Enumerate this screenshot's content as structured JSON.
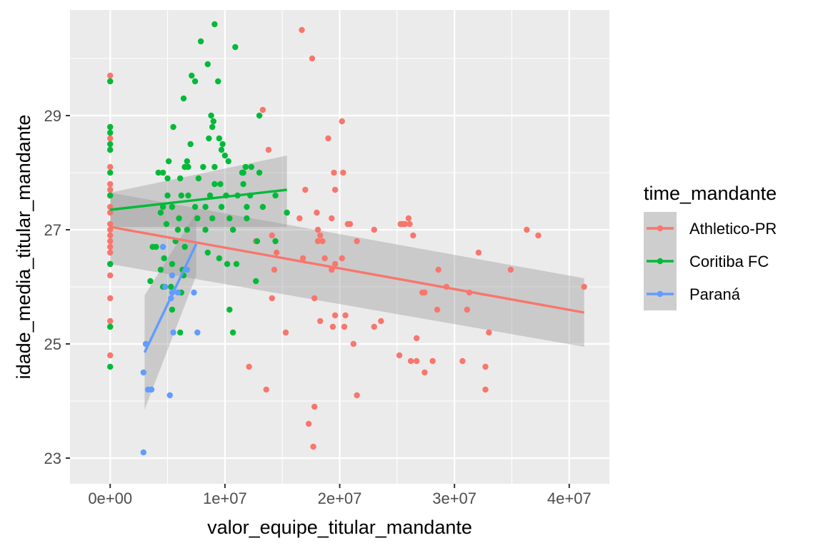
{
  "chart_data": {
    "type": "scatter",
    "title": "",
    "xlabel": "valor_equipe_titular_mandante",
    "ylabel": "idade_media_titular_mandante",
    "xlim": [
      -3500000,
      43500000
    ],
    "ylim": [
      22.55,
      30.85
    ],
    "x_ticks": [
      0,
      10000000,
      20000000,
      30000000,
      40000000
    ],
    "x_tick_labels": [
      "0e+00",
      "1e+07",
      "2e+07",
      "3e+07",
      "4e+07"
    ],
    "y_ticks": [
      23,
      25,
      27,
      29
    ],
    "y_tick_labels": [
      "23",
      "25",
      "27",
      "29"
    ],
    "grid": true,
    "legend": {
      "title": "time_mandante",
      "placement": "right"
    },
    "series": [
      {
        "name": "Athletico-PR",
        "color": "#F8766D",
        "trend": {
          "x": [
            0,
            41300000
          ],
          "y": [
            27.05,
            25.55
          ]
        },
        "band": {
          "lower": [
            26.4,
            24.95
          ],
          "upper": [
            27.65,
            26.15
          ]
        },
        "points": [
          [
            0,
            29.7
          ],
          [
            0,
            29.6
          ],
          [
            0,
            28.8
          ],
          [
            0,
            28.6
          ],
          [
            0,
            28.4
          ],
          [
            0,
            28.1
          ],
          [
            0,
            27.8
          ],
          [
            0,
            27.7
          ],
          [
            0,
            27.6
          ],
          [
            0,
            27.4
          ],
          [
            0,
            27.3
          ],
          [
            0,
            27.1
          ],
          [
            0,
            27.0
          ],
          [
            0,
            26.9
          ],
          [
            0,
            26.8
          ],
          [
            0,
            26.7
          ],
          [
            0,
            26.6
          ],
          [
            0,
            26.4
          ],
          [
            0,
            26.2
          ],
          [
            0,
            25.8
          ],
          [
            0,
            25.4
          ],
          [
            0,
            25.3
          ],
          [
            0,
            24.8
          ],
          [
            16700000,
            30.5
          ],
          [
            17600000,
            30.0
          ],
          [
            13300000,
            29.1
          ],
          [
            20200000,
            28.9
          ],
          [
            19000000,
            28.6
          ],
          [
            13800000,
            28.4
          ],
          [
            19500000,
            28.0
          ],
          [
            20300000,
            28.0
          ],
          [
            17000000,
            27.7
          ],
          [
            19600000,
            27.7
          ],
          [
            18000000,
            27.3
          ],
          [
            16500000,
            27.2
          ],
          [
            19300000,
            27.2
          ],
          [
            20700000,
            27.1
          ],
          [
            20900000,
            27.1
          ],
          [
            18100000,
            27.0
          ],
          [
            18300000,
            26.9
          ],
          [
            18100000,
            26.8
          ],
          [
            18500000,
            26.8
          ],
          [
            21500000,
            26.8
          ],
          [
            23000000,
            27.0
          ],
          [
            25300000,
            27.1
          ],
          [
            25500000,
            27.1
          ],
          [
            25700000,
            27.1
          ],
          [
            26000000,
            27.2
          ],
          [
            26100000,
            27.1
          ],
          [
            26400000,
            26.9
          ],
          [
            12700000,
            26.8
          ],
          [
            14100000,
            26.9
          ],
          [
            14500000,
            26.6
          ],
          [
            16800000,
            26.5
          ],
          [
            18700000,
            26.5
          ],
          [
            20200000,
            26.5
          ],
          [
            19600000,
            26.4
          ],
          [
            19300000,
            26.3
          ],
          [
            14300000,
            26.3
          ],
          [
            28600000,
            26.3
          ],
          [
            32100000,
            26.6
          ],
          [
            34900000,
            26.3
          ],
          [
            36300000,
            27.0
          ],
          [
            37300000,
            26.9
          ],
          [
            29300000,
            26.0
          ],
          [
            31300000,
            25.9
          ],
          [
            27400000,
            25.9
          ],
          [
            27200000,
            25.9
          ],
          [
            28500000,
            25.6
          ],
          [
            31100000,
            25.6
          ],
          [
            41300000,
            26.0
          ],
          [
            17800000,
            25.8
          ],
          [
            14100000,
            25.8
          ],
          [
            18300000,
            25.4
          ],
          [
            19600000,
            25.5
          ],
          [
            20500000,
            25.5
          ],
          [
            19400000,
            25.3
          ],
          [
            20400000,
            25.3
          ],
          [
            15300000,
            25.2
          ],
          [
            23000000,
            25.3
          ],
          [
            23600000,
            25.4
          ],
          [
            26700000,
            25.1
          ],
          [
            33000000,
            25.2
          ],
          [
            21200000,
            25.0
          ],
          [
            25200000,
            24.8
          ],
          [
            26200000,
            24.7
          ],
          [
            26700000,
            24.7
          ],
          [
            27400000,
            24.5
          ],
          [
            28100000,
            24.7
          ],
          [
            30700000,
            24.7
          ],
          [
            32700000,
            24.6
          ],
          [
            32700000,
            24.2
          ],
          [
            12100000,
            24.6
          ],
          [
            13600000,
            24.2
          ],
          [
            21500000,
            24.1
          ],
          [
            17800000,
            23.9
          ],
          [
            17300000,
            23.6
          ],
          [
            17700000,
            23.2
          ]
        ]
      },
      {
        "name": "Coritiba FC",
        "color": "#00BA38",
        "trend": {
          "x": [
            0,
            15400000
          ],
          "y": [
            27.35,
            27.7
          ]
        },
        "band": {
          "lower": [
            27.05,
            27.05
          ],
          "upper": [
            27.65,
            28.3
          ]
        },
        "points": [
          [
            0,
            29.6
          ],
          [
            0,
            28.8
          ],
          [
            0,
            28.7
          ],
          [
            0,
            28.5
          ],
          [
            0,
            28.4
          ],
          [
            0,
            28.0
          ],
          [
            0,
            27.6
          ],
          [
            0,
            26.4
          ],
          [
            0,
            25.3
          ],
          [
            0,
            24.6
          ],
          [
            6100000,
            25.2
          ],
          [
            5400000,
            25.6
          ],
          [
            9100000,
            30.6
          ],
          [
            10900000,
            30.2
          ],
          [
            7900000,
            30.3
          ],
          [
            8500000,
            29.9
          ],
          [
            7100000,
            29.7
          ],
          [
            7400000,
            29.6
          ],
          [
            9400000,
            29.6
          ],
          [
            6400000,
            29.3
          ],
          [
            8800000,
            29.0
          ],
          [
            9000000,
            28.9
          ],
          [
            8900000,
            28.8
          ],
          [
            13000000,
            29.0
          ],
          [
            5500000,
            28.8
          ],
          [
            8600000,
            28.6
          ],
          [
            9500000,
            28.6
          ],
          [
            9800000,
            28.5
          ],
          [
            7000000,
            28.5
          ],
          [
            9700000,
            28.4
          ],
          [
            10000000,
            28.3
          ],
          [
            5100000,
            28.2
          ],
          [
            6700000,
            28.2
          ],
          [
            6500000,
            28.1
          ],
          [
            6800000,
            28.1
          ],
          [
            8100000,
            28.1
          ],
          [
            9100000,
            28.1
          ],
          [
            10300000,
            28.2
          ],
          [
            11500000,
            28.0
          ],
          [
            11800000,
            28.1
          ],
          [
            12300000,
            28.1
          ],
          [
            11600000,
            28.0
          ],
          [
            13000000,
            28.0
          ],
          [
            4200000,
            28.0
          ],
          [
            4600000,
            28.0
          ],
          [
            5000000,
            27.9
          ],
          [
            6100000,
            27.9
          ],
          [
            7700000,
            27.9
          ],
          [
            9100000,
            27.8
          ],
          [
            9600000,
            27.8
          ],
          [
            11600000,
            27.8
          ],
          [
            5000000,
            27.6
          ],
          [
            6200000,
            27.6
          ],
          [
            6800000,
            27.6
          ],
          [
            8700000,
            27.6
          ],
          [
            10100000,
            27.6
          ],
          [
            11100000,
            27.6
          ],
          [
            12200000,
            27.6
          ],
          [
            14400000,
            27.6
          ],
          [
            4600000,
            27.4
          ],
          [
            5400000,
            27.4
          ],
          [
            7400000,
            27.4
          ],
          [
            8300000,
            27.4
          ],
          [
            9700000,
            27.4
          ],
          [
            11900000,
            27.4
          ],
          [
            13300000,
            27.4
          ],
          [
            15400000,
            27.3
          ],
          [
            4400000,
            27.3
          ],
          [
            6000000,
            27.2
          ],
          [
            7600000,
            27.2
          ],
          [
            8900000,
            27.2
          ],
          [
            10400000,
            27.2
          ],
          [
            11900000,
            27.2
          ],
          [
            4900000,
            27.1
          ],
          [
            5900000,
            27.0
          ],
          [
            6700000,
            27.0
          ],
          [
            8300000,
            27.0
          ],
          [
            10700000,
            27.0
          ],
          [
            12800000,
            26.8
          ],
          [
            14400000,
            26.8
          ],
          [
            5700000,
            26.8
          ],
          [
            6500000,
            26.7
          ],
          [
            8500000,
            26.6
          ],
          [
            9500000,
            26.5
          ],
          [
            10200000,
            26.4
          ],
          [
            11000000,
            26.4
          ],
          [
            4000000,
            26.7
          ],
          [
            3700000,
            26.7
          ],
          [
            4700000,
            26.5
          ],
          [
            4400000,
            26.3
          ],
          [
            5400000,
            26.4
          ],
          [
            6300000,
            26.3
          ],
          [
            3500000,
            26.1
          ],
          [
            6400000,
            26.2
          ],
          [
            4600000,
            26.0
          ],
          [
            5300000,
            26.0
          ],
          [
            6200000,
            25.9
          ],
          [
            12700000,
            26.1
          ],
          [
            10700000,
            25.2
          ],
          [
            10400000,
            25.6
          ]
        ]
      },
      {
        "name": "Paraná",
        "color": "#619CFF",
        "trend": {
          "x": [
            3000000,
            7500000
          ],
          "y": [
            24.85,
            26.75
          ]
        },
        "band": {
          "lower": [
            23.85,
            26.2
          ],
          "upper": [
            25.85,
            27.3
          ]
        },
        "points": [
          [
            4600000,
            26.7
          ],
          [
            3100000,
            25.0
          ],
          [
            2900000,
            24.5
          ],
          [
            3300000,
            24.2
          ],
          [
            3600000,
            24.2
          ],
          [
            5200000,
            24.1
          ],
          [
            2900000,
            23.1
          ],
          [
            5400000,
            26.2
          ],
          [
            5400000,
            25.9
          ],
          [
            5300000,
            25.8
          ],
          [
            5900000,
            25.9
          ],
          [
            5500000,
            25.2
          ],
          [
            7300000,
            25.9
          ],
          [
            7600000,
            25.2
          ],
          [
            6700000,
            26.3
          ],
          [
            4800000,
            26.0
          ]
        ]
      }
    ]
  }
}
